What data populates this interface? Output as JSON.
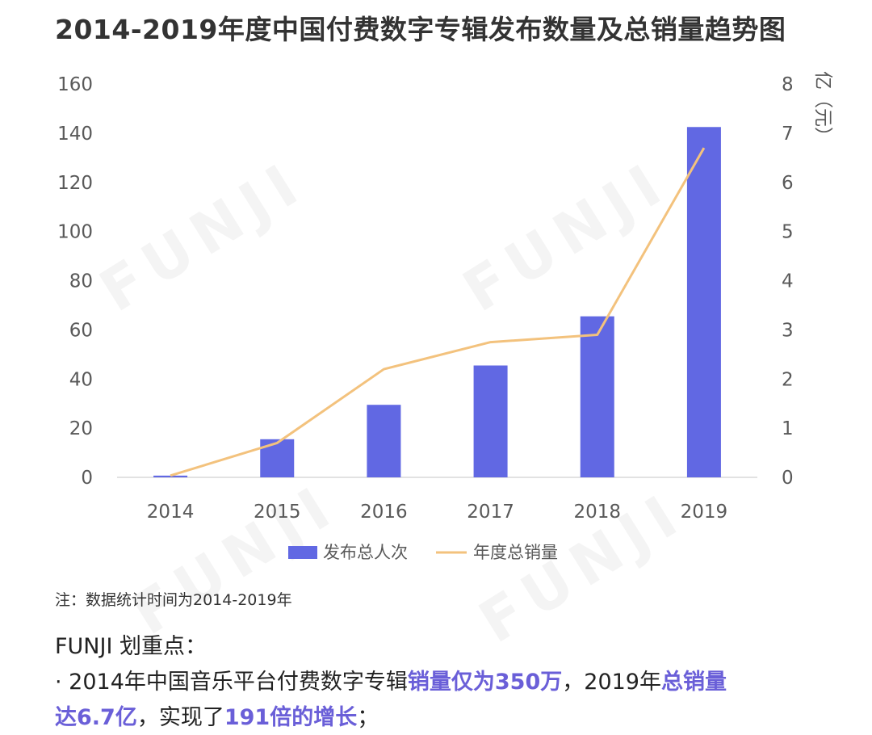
{
  "title": "2014-2019年度中国付费数字专辑发布数量及总销量趋势图",
  "watermark": "FUNJI",
  "note": "注：数据统计时间为2014-2019年",
  "highlights_heading": "FUNJI 划重点：",
  "highlight_line1": {
    "t1": "· 2014年中国音乐平台付费数字专辑",
    "h1": "销量仅为350万",
    "t2": "，2019年",
    "h2": "总销量"
  },
  "highlight_line2": {
    "h1": "达6.7亿",
    "t1": "，实现了",
    "h2": "191倍的增长",
    "t2": "；"
  },
  "colors": {
    "bar": "#6168e3",
    "line": "#f3c27d",
    "highlight": "#6a5fd8"
  },
  "chart_data": {
    "type": "bar",
    "categories": [
      "2014",
      "2015",
      "2016",
      "2017",
      "2018",
      "2019"
    ],
    "series": [
      {
        "name": "发布总人次",
        "type": "bar",
        "axis": "left",
        "values": [
          0.7,
          15.5,
          29.5,
          45.5,
          65.5,
          142.5
        ]
      },
      {
        "name": "年度总销量",
        "type": "line",
        "axis": "right",
        "values": [
          0.035,
          0.7,
          2.2,
          2.75,
          2.9,
          6.7
        ]
      }
    ],
    "y_left": {
      "ticks": [
        "0",
        "20",
        "40",
        "60",
        "80",
        "100",
        "120",
        "140",
        "160"
      ],
      "range": [
        0,
        160
      ]
    },
    "y_right": {
      "ticks": [
        "0",
        "1",
        "2",
        "3",
        "4",
        "5",
        "6",
        "7",
        "8"
      ],
      "range": [
        0,
        8
      ],
      "label": "亿（元）"
    },
    "grid": false,
    "legend_position": "bottom"
  }
}
